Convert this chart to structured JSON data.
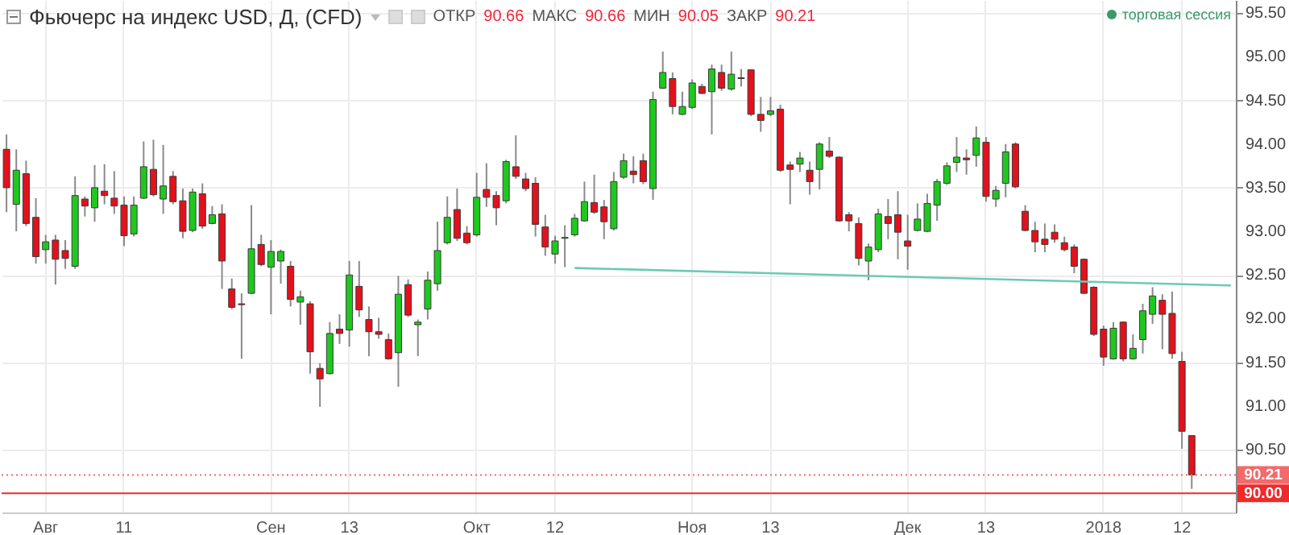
{
  "chart_data": {
    "type": "candlestick",
    "title": "Фьючерс на индекс USD, Д, (CFD)",
    "annotations": [
      "ОТКР",
      "90.66",
      "МАКС",
      "90.66",
      "МИН",
      "90.05",
      "ЗАКР",
      "90.21",
      "торговая сессия"
    ],
    "categories": [
      null,
      null,
      null,
      null,
      "Авг",
      null,
      null,
      null,
      null,
      null,
      null,
      null,
      "11",
      null,
      null,
      null,
      null,
      null,
      null,
      null,
      null,
      null,
      null,
      null,
      null,
      null,
      null,
      "Сен",
      null,
      null,
      null,
      null,
      null,
      null,
      null,
      "13",
      null,
      null,
      null,
      null,
      null,
      null,
      null,
      null,
      null,
      null,
      null,
      null,
      "Окт",
      null,
      null,
      null,
      null,
      null,
      null,
      null,
      "12",
      null,
      null,
      null,
      null,
      null,
      null,
      null,
      null,
      null,
      null,
      null,
      null,
      null,
      "Ноя",
      null,
      null,
      null,
      null,
      null,
      null,
      null,
      "13",
      null,
      null,
      null,
      null,
      null,
      null,
      null,
      null,
      null,
      null,
      null,
      null,
      null,
      "Дек",
      null,
      null,
      null,
      null,
      null,
      null,
      null,
      "13",
      null,
      null,
      null,
      null,
      null,
      null,
      null,
      null,
      null,
      null,
      null,
      "2018",
      null,
      null,
      null,
      null,
      null,
      null,
      null,
      "12",
      null,
      null,
      null,
      null,
      null
    ],
    "ohlc": [
      [
        93.94,
        94.11,
        93.22,
        93.5
      ],
      [
        93.31,
        93.94,
        93.0,
        93.7
      ],
      [
        93.66,
        93.81,
        93.06,
        93.09
      ],
      [
        93.16,
        93.38,
        92.63,
        92.71
      ],
      [
        92.79,
        92.96,
        92.63,
        92.88
      ],
      [
        92.9,
        92.96,
        92.39,
        92.68
      ],
      [
        92.78,
        92.9,
        92.57,
        92.69
      ],
      [
        92.6,
        93.63,
        92.57,
        93.41
      ],
      [
        93.37,
        93.4,
        93.17,
        93.29
      ],
      [
        93.27,
        93.76,
        93.11,
        93.5
      ],
      [
        93.46,
        93.77,
        93.31,
        93.41
      ],
      [
        93.38,
        93.69,
        93.2,
        93.29
      ],
      [
        93.3,
        93.4,
        92.83,
        92.95
      ],
      [
        92.97,
        93.4,
        92.94,
        93.3
      ],
      [
        93.38,
        94.03,
        93.37,
        93.74
      ],
      [
        93.71,
        94.05,
        93.4,
        93.42
      ],
      [
        93.37,
        93.99,
        93.2,
        93.52
      ],
      [
        93.63,
        93.69,
        93.31,
        93.34
      ],
      [
        93.35,
        93.49,
        92.92,
        93.0
      ],
      [
        93.01,
        93.49,
        92.99,
        93.45
      ],
      [
        93.43,
        93.55,
        93.03,
        93.06
      ],
      [
        93.09,
        93.29,
        93.08,
        93.19
      ],
      [
        93.2,
        93.31,
        92.34,
        92.66
      ],
      [
        92.34,
        92.46,
        92.11,
        92.13
      ],
      [
        92.17,
        92.29,
        91.54,
        92.16
      ],
      [
        92.29,
        93.3,
        92.28,
        92.8
      ],
      [
        92.85,
        92.96,
        92.6,
        92.62
      ],
      [
        92.59,
        92.9,
        92.05,
        92.77
      ],
      [
        92.66,
        92.79,
        92.4,
        92.77
      ],
      [
        92.6,
        92.66,
        92.14,
        92.22
      ],
      [
        92.19,
        92.32,
        91.93,
        92.25
      ],
      [
        92.17,
        92.2,
        91.37,
        91.62
      ],
      [
        91.43,
        91.49,
        90.99,
        91.31
      ],
      [
        91.37,
        91.96,
        91.36,
        91.83
      ],
      [
        91.88,
        92.05,
        91.71,
        91.83
      ],
      [
        91.87,
        92.66,
        91.68,
        92.5
      ],
      [
        92.37,
        92.66,
        92.02,
        92.1
      ],
      [
        91.99,
        92.14,
        91.57,
        91.85
      ],
      [
        91.85,
        92.01,
        91.77,
        91.82
      ],
      [
        91.76,
        91.83,
        91.53,
        91.54
      ],
      [
        91.61,
        92.49,
        91.22,
        92.28
      ],
      [
        92.39,
        92.45,
        92.02,
        92.04
      ],
      [
        91.93,
        91.99,
        91.57,
        91.96
      ],
      [
        92.11,
        92.54,
        91.99,
        92.44
      ],
      [
        92.4,
        93.11,
        92.32,
        92.78
      ],
      [
        92.87,
        93.4,
        92.85,
        93.16
      ],
      [
        93.25,
        93.49,
        92.89,
        92.92
      ],
      [
        92.98,
        93.06,
        92.85,
        92.87
      ],
      [
        92.96,
        93.67,
        92.94,
        93.39
      ],
      [
        93.48,
        93.78,
        93.28,
        93.39
      ],
      [
        93.41,
        93.46,
        93.07,
        93.27
      ],
      [
        93.35,
        93.82,
        93.32,
        93.8
      ],
      [
        93.74,
        94.1,
        93.6,
        93.63
      ],
      [
        93.6,
        93.67,
        93.46,
        93.49
      ],
      [
        93.55,
        93.62,
        92.94,
        93.08
      ],
      [
        93.05,
        93.19,
        92.72,
        92.82
      ],
      [
        92.74,
        92.95,
        92.63,
        92.89
      ],
      [
        92.92,
        93.07,
        92.59,
        92.93
      ],
      [
        92.96,
        93.2,
        92.94,
        93.15
      ],
      [
        93.12,
        93.57,
        93.11,
        93.34
      ],
      [
        93.33,
        93.65,
        93.2,
        93.22
      ],
      [
        93.28,
        93.36,
        92.91,
        93.11
      ],
      [
        93.03,
        93.68,
        93.01,
        93.57
      ],
      [
        93.62,
        93.89,
        93.6,
        93.81
      ],
      [
        93.69,
        93.86,
        93.55,
        93.65
      ],
      [
        93.81,
        93.89,
        93.54,
        93.57
      ],
      [
        93.49,
        94.6,
        93.36,
        94.51
      ],
      [
        94.64,
        95.06,
        94.63,
        94.82
      ],
      [
        94.75,
        94.82,
        94.34,
        94.43
      ],
      [
        94.34,
        94.6,
        94.33,
        94.43
      ],
      [
        94.42,
        94.74,
        94.4,
        94.7
      ],
      [
        94.66,
        94.69,
        94.57,
        94.58
      ],
      [
        94.6,
        94.91,
        94.11,
        94.86
      ],
      [
        94.82,
        94.91,
        94.61,
        94.64
      ],
      [
        94.63,
        95.06,
        94.61,
        94.8
      ],
      [
        94.75,
        94.86,
        94.66,
        94.76
      ],
      [
        94.85,
        94.85,
        94.32,
        94.34
      ],
      [
        94.34,
        94.54,
        94.14,
        94.27
      ],
      [
        94.34,
        94.54,
        94.32,
        94.38
      ],
      [
        94.4,
        94.45,
        93.68,
        93.7
      ],
      [
        93.76,
        93.8,
        93.31,
        93.71
      ],
      [
        93.77,
        93.91,
        93.68,
        93.84
      ],
      [
        93.7,
        93.8,
        93.42,
        93.57
      ],
      [
        93.71,
        94.02,
        93.48,
        94.0
      ],
      [
        93.92,
        94.08,
        93.84,
        93.86
      ],
      [
        93.85,
        93.86,
        93.11,
        93.12
      ],
      [
        93.19,
        93.22,
        93.0,
        93.12
      ],
      [
        93.09,
        93.16,
        92.61,
        92.69
      ],
      [
        92.66,
        92.86,
        92.44,
        92.82
      ],
      [
        92.79,
        93.26,
        92.76,
        93.2
      ],
      [
        93.17,
        93.37,
        92.91,
        93.09
      ],
      [
        93.19,
        93.46,
        92.68,
        92.99
      ],
      [
        92.89,
        93.19,
        92.56,
        92.83
      ],
      [
        93.01,
        93.32,
        93.0,
        93.14
      ],
      [
        93.0,
        93.43,
        92.99,
        93.32
      ],
      [
        93.3,
        93.6,
        93.12,
        93.57
      ],
      [
        93.55,
        93.79,
        93.53,
        93.75
      ],
      [
        93.79,
        94.08,
        93.68,
        93.85
      ],
      [
        93.84,
        93.94,
        93.65,
        93.82
      ],
      [
        93.87,
        94.2,
        93.74,
        94.07
      ],
      [
        94.02,
        94.08,
        93.34,
        93.4
      ],
      [
        93.37,
        93.52,
        93.28,
        93.47
      ],
      [
        93.55,
        94.0,
        93.39,
        93.91
      ],
      [
        94.0,
        94.02,
        93.49,
        93.51
      ],
      [
        93.23,
        93.3,
        93.0,
        93.01
      ],
      [
        93.01,
        93.11,
        92.76,
        92.88
      ],
      [
        92.91,
        93.09,
        92.76,
        92.85
      ],
      [
        92.99,
        93.08,
        92.87,
        92.91
      ],
      [
        92.87,
        92.94,
        92.77,
        92.79
      ],
      [
        92.82,
        92.85,
        92.52,
        92.6
      ],
      [
        92.68,
        92.69,
        92.28,
        92.29
      ],
      [
        92.36,
        92.37,
        91.8,
        91.82
      ],
      [
        91.88,
        91.92,
        91.46,
        91.56
      ],
      [
        91.54,
        91.96,
        91.53,
        91.89
      ],
      [
        91.96,
        91.97,
        91.51,
        91.54
      ],
      [
        91.54,
        91.82,
        91.53,
        91.66
      ],
      [
        91.76,
        92.17,
        91.6,
        92.09
      ],
      [
        92.05,
        92.36,
        91.94,
        92.26
      ],
      [
        92.21,
        92.28,
        91.65,
        92.05
      ],
      [
        92.06,
        92.31,
        91.54,
        91.6
      ],
      [
        91.51,
        91.62,
        90.51,
        90.71
      ],
      [
        90.66,
        90.66,
        90.05,
        90.21
      ],
      null,
      null,
      null,
      null
    ],
    "series": [
      {
        "type": "line",
        "color": "#6ccab5",
        "values": [
          null,
          null,
          null,
          null,
          null,
          null,
          null,
          null,
          null,
          null,
          null,
          null,
          null,
          null,
          null,
          null,
          null,
          null,
          null,
          null,
          null,
          null,
          null,
          null,
          null,
          null,
          null,
          null,
          null,
          null,
          null,
          null,
          null,
          null,
          null,
          null,
          null,
          null,
          null,
          null,
          null,
          null,
          null,
          null,
          null,
          null,
          null,
          null,
          null,
          null,
          null,
          null,
          null,
          null,
          null,
          null,
          null,
          null,
          92.58,
          null,
          null,
          null,
          null,
          null,
          null,
          null,
          null,
          null,
          null,
          null,
          null,
          null,
          null,
          null,
          null,
          null,
          null,
          null,
          null,
          null,
          null,
          null,
          null,
          null,
          null,
          null,
          null,
          null,
          null,
          null,
          null,
          null,
          null,
          null,
          null,
          null,
          null,
          null,
          null,
          null,
          null,
          null,
          null,
          null,
          null,
          null,
          null,
          null,
          null,
          null,
          null,
          null,
          null,
          null,
          null,
          null,
          null,
          null,
          null,
          null,
          null,
          null,
          null,
          null,
          null,
          92.38
        ]
      }
    ],
    "ylim": [
      89.78,
      95.65
    ],
    "yticks": [
      {
        "value": 90.5,
        "label": "90.50"
      },
      {
        "value": 91,
        "label": "91.00"
      },
      {
        "value": 91.5,
        "label": "91.50"
      },
      {
        "value": 92,
        "label": "92.00"
      },
      {
        "value": 92.5,
        "label": "92.50"
      },
      {
        "value": 93,
        "label": "93.00"
      },
      {
        "value": 93.5,
        "label": "93.50"
      },
      {
        "value": 94,
        "label": "94.00"
      },
      {
        "value": 94.5,
        "label": "94.50"
      },
      {
        "value": 95,
        "label": "95.00"
      },
      {
        "value": 95.5,
        "label": "95.50"
      }
    ],
    "ref_lines": [
      {
        "axis": "y",
        "value": 90.21,
        "label": "90.21",
        "color": "#f26a6a",
        "line_style": "dotted"
      },
      {
        "axis": "y",
        "value": 90.0,
        "label": "90.00",
        "color": "#ee2a2a",
        "line_style": "solid"
      }
    ],
    "grid": true
  }
}
